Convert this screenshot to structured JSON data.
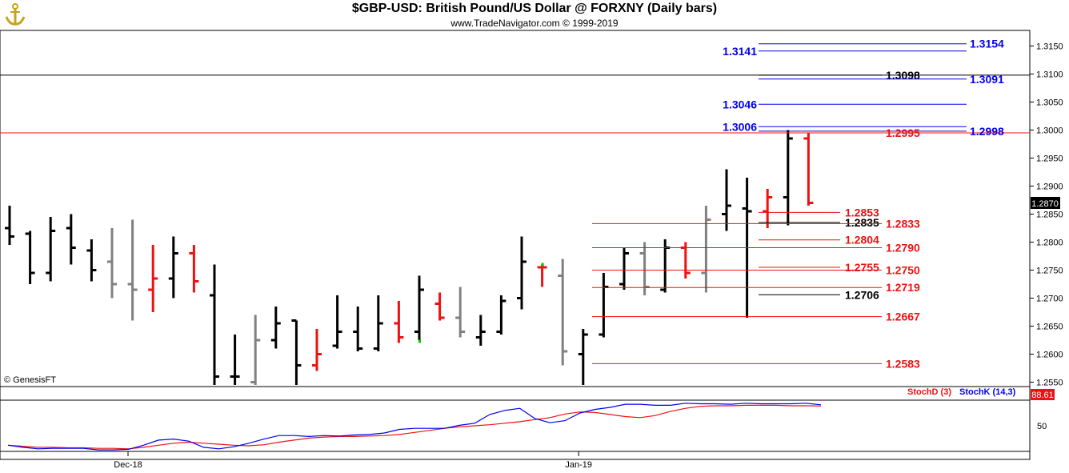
{
  "header": {
    "title": "$GBP-USD:  British Pound/US Dollar @ FORXNY  (Daily bars)",
    "subtitle": "www.TradeNavigator.com © 1999-2019",
    "watermark": "© GenesisFT"
  },
  "colors": {
    "black": "#000000",
    "gray": "#808080",
    "red": "#ee1111",
    "blue": "#0000ee",
    "green": "#00cc00"
  },
  "chart_data": [
    {
      "type": "ohlc",
      "title": "$GBP-USD:  British Pound/US Dollar @ FORXNY  (Daily bars)",
      "ylim": [
        1.2545,
        1.3175
      ],
      "yticks": [
        "1.2550",
        "1.2600",
        "1.2650",
        "1.2700",
        "1.2750",
        "1.2800",
        "1.2850",
        "1.2900",
        "1.2950",
        "1.3000",
        "1.3050",
        "1.3100",
        "1.3150"
      ],
      "last_price": "1.2870",
      "xlabels": [
        {
          "label": "Dec-18",
          "index": 5
        },
        {
          "label": "Jan-19",
          "index": 27
        }
      ],
      "bars": [
        {
          "o": 1.2825,
          "h": 1.2865,
          "l": 1.2795,
          "c": 1.281,
          "color": "black"
        },
        {
          "o": 1.2815,
          "h": 1.282,
          "l": 1.2725,
          "c": 1.2745,
          "color": "black"
        },
        {
          "o": 1.2745,
          "h": 1.2845,
          "l": 1.273,
          "c": 1.282,
          "color": "black"
        },
        {
          "o": 1.2825,
          "h": 1.285,
          "l": 1.276,
          "c": 1.279,
          "color": "black"
        },
        {
          "o": 1.2785,
          "h": 1.2805,
          "l": 1.273,
          "c": 1.275,
          "color": "black"
        },
        {
          "o": 1.2765,
          "h": 1.2825,
          "l": 1.27,
          "c": 1.2725,
          "color": "gray"
        },
        {
          "o": 1.2725,
          "h": 1.284,
          "l": 1.266,
          "c": 1.2715,
          "color": "gray"
        },
        {
          "o": 1.2715,
          "h": 1.2795,
          "l": 1.2675,
          "c": 1.2735,
          "color": "red"
        },
        {
          "o": 1.2735,
          "h": 1.281,
          "l": 1.27,
          "c": 1.278,
          "color": "black"
        },
        {
          "o": 1.278,
          "h": 1.2795,
          "l": 1.271,
          "c": 1.273,
          "color": "red"
        },
        {
          "o": 1.2705,
          "h": 1.276,
          "l": 1.2545,
          "c": 1.256,
          "color": "black"
        },
        {
          "o": 1.256,
          "h": 1.2635,
          "l": 1.2545,
          "c": 1.256,
          "color": "black"
        },
        {
          "o": 1.255,
          "h": 1.267,
          "l": 1.2545,
          "c": 1.2625,
          "color": "gray"
        },
        {
          "o": 1.2625,
          "h": 1.2685,
          "l": 1.261,
          "c": 1.2655,
          "color": "black"
        },
        {
          "o": 1.266,
          "h": 1.266,
          "l": 1.2545,
          "c": 1.258,
          "color": "black"
        },
        {
          "o": 1.258,
          "h": 1.2645,
          "l": 1.257,
          "c": 1.26,
          "color": "red"
        },
        {
          "o": 1.2615,
          "h": 1.2705,
          "l": 1.261,
          "c": 1.264,
          "color": "black"
        },
        {
          "o": 1.264,
          "h": 1.2685,
          "l": 1.2605,
          "c": 1.261,
          "color": "black"
        },
        {
          "o": 1.261,
          "h": 1.2705,
          "l": 1.2605,
          "c": 1.2655,
          "color": "black"
        },
        {
          "o": 1.2655,
          "h": 1.2695,
          "l": 1.262,
          "c": 1.263,
          "color": "red"
        },
        {
          "o": 1.264,
          "h": 1.274,
          "l": 1.2625,
          "c": 1.2715,
          "color": "black"
        },
        {
          "o": 1.269,
          "h": 1.271,
          "l": 1.266,
          "c": 1.2665,
          "color": "red"
        },
        {
          "o": 1.2665,
          "h": 1.272,
          "l": 1.263,
          "c": 1.264,
          "color": "gray"
        },
        {
          "o": 1.263,
          "h": 1.267,
          "l": 1.2615,
          "c": 1.264,
          "color": "black"
        },
        {
          "o": 1.264,
          "h": 1.2705,
          "l": 1.2635,
          "c": 1.2695,
          "color": "black"
        },
        {
          "o": 1.27,
          "h": 1.281,
          "l": 1.268,
          "c": 1.2765,
          "color": "black"
        },
        {
          "o": 1.2755,
          "h": 1.276,
          "l": 1.272,
          "c": 1.2755,
          "color": "red"
        },
        {
          "o": 1.274,
          "h": 1.277,
          "l": 1.258,
          "c": 1.2605,
          "color": "gray"
        },
        {
          "o": 1.26,
          "h": 1.2645,
          "l": 1.2545,
          "c": 1.2635,
          "color": "black"
        },
        {
          "o": 1.2635,
          "h": 1.2745,
          "l": 1.263,
          "c": 1.272,
          "color": "black"
        },
        {
          "o": 1.2725,
          "h": 1.279,
          "l": 1.2715,
          "c": 1.278,
          "color": "black"
        },
        {
          "o": 1.278,
          "h": 1.28,
          "l": 1.2705,
          "c": 1.272,
          "color": "gray"
        },
        {
          "o": 1.2715,
          "h": 1.2805,
          "l": 1.271,
          "c": 1.279,
          "color": "black"
        },
        {
          "o": 1.279,
          "h": 1.28,
          "l": 1.2735,
          "c": 1.2745,
          "color": "red"
        },
        {
          "o": 1.2745,
          "h": 1.2865,
          "l": 1.271,
          "c": 1.284,
          "color": "gray"
        },
        {
          "o": 1.285,
          "h": 1.293,
          "l": 1.282,
          "c": 1.2865,
          "color": "black"
        },
        {
          "o": 1.286,
          "h": 1.2915,
          "l": 1.2665,
          "c": 1.2855,
          "color": "black"
        },
        {
          "o": 1.2855,
          "h": 1.2895,
          "l": 1.2825,
          "c": 1.288,
          "color": "red"
        },
        {
          "o": 1.288,
          "h": 1.3,
          "l": 1.283,
          "c": 1.2985,
          "color": "black"
        },
        {
          "o": 1.2985,
          "h": 1.2995,
          "l": 1.2865,
          "c": 1.287,
          "color": "red"
        }
      ],
      "levels": [
        {
          "value": 1.3154,
          "label": "1.3154",
          "color": "blue",
          "side": "right"
        },
        {
          "value": 1.3141,
          "label": "1.3141",
          "color": "blue",
          "side": "left"
        },
        {
          "value": 1.3098,
          "label": "1.3098",
          "color": "black",
          "side": "mid"
        },
        {
          "value": 1.3091,
          "label": "1.3091",
          "color": "blue",
          "side": "right"
        },
        {
          "value": 1.3046,
          "label": "1.3046",
          "color": "blue",
          "side": "left"
        },
        {
          "value": 1.3006,
          "label": "1.3006",
          "color": "blue",
          "side": "left"
        },
        {
          "value": 1.2998,
          "label": "1.2998",
          "color": "blue",
          "side": "right"
        },
        {
          "value": 1.2995,
          "label": "1.2995",
          "color": "red",
          "side": "mid"
        },
        {
          "value": 1.2853,
          "label": "1.2853",
          "color": "red",
          "side": "near"
        },
        {
          "value": 1.2835,
          "label": "1.2835",
          "color": "black",
          "side": "near"
        },
        {
          "value": 1.2833,
          "label": "1.2833",
          "color": "red",
          "side": "mid"
        },
        {
          "value": 1.2804,
          "label": "1.2804",
          "color": "red",
          "side": "near"
        },
        {
          "value": 1.279,
          "label": "1.2790",
          "color": "red",
          "side": "mid"
        },
        {
          "value": 1.2755,
          "label": "1.2755",
          "color": "red",
          "side": "near"
        },
        {
          "value": 1.275,
          "label": "1.2750",
          "color": "red",
          "side": "mid"
        },
        {
          "value": 1.2719,
          "label": "1.2719",
          "color": "red",
          "side": "mid"
        },
        {
          "value": 1.2706,
          "label": "1.2706",
          "color": "black",
          "side": "near"
        },
        {
          "value": 1.2667,
          "label": "1.2667",
          "color": "red",
          "side": "mid"
        },
        {
          "value": 1.2583,
          "label": "1.2583",
          "color": "red",
          "side": "mid"
        }
      ],
      "full_lines": [
        {
          "value": 1.3098,
          "color": "black"
        },
        {
          "value": 1.2995,
          "color": "red"
        }
      ]
    },
    {
      "type": "line",
      "title": "",
      "legend": [
        "StochD (3)",
        "StochK (14,3)"
      ],
      "ylim": [
        0,
        100
      ],
      "yticks": [
        "50"
      ],
      "last_value": "88.61",
      "series": [
        {
          "name": "StochD (3)",
          "color": "red",
          "values": [
            12,
            10,
            8,
            8,
            7,
            7,
            6,
            6,
            5,
            8,
            12,
            16,
            18,
            16,
            14,
            12,
            11,
            13,
            18,
            22,
            26,
            28,
            29,
            29,
            30,
            31,
            33,
            37,
            41,
            45,
            48,
            50,
            52,
            55,
            58,
            62,
            66,
            73,
            77,
            76,
            72,
            68,
            66,
            70,
            78,
            84,
            88,
            89,
            89,
            90,
            90,
            90,
            89,
            89,
            88.61
          ]
        },
        {
          "name": "StochK (14,3)",
          "color": "blue",
          "values": [
            12,
            8,
            5,
            6,
            6,
            6,
            3,
            3,
            4,
            12,
            22,
            24,
            20,
            8,
            5,
            9,
            16,
            24,
            31,
            31,
            29,
            31,
            30,
            32,
            33,
            36,
            43,
            45,
            45,
            45,
            51,
            55,
            72,
            80,
            84,
            64,
            56,
            60,
            75,
            82,
            86,
            92,
            92,
            90,
            90,
            94,
            93,
            93,
            92,
            94,
            93,
            93,
            93,
            94,
            91
          ]
        }
      ]
    }
  ]
}
